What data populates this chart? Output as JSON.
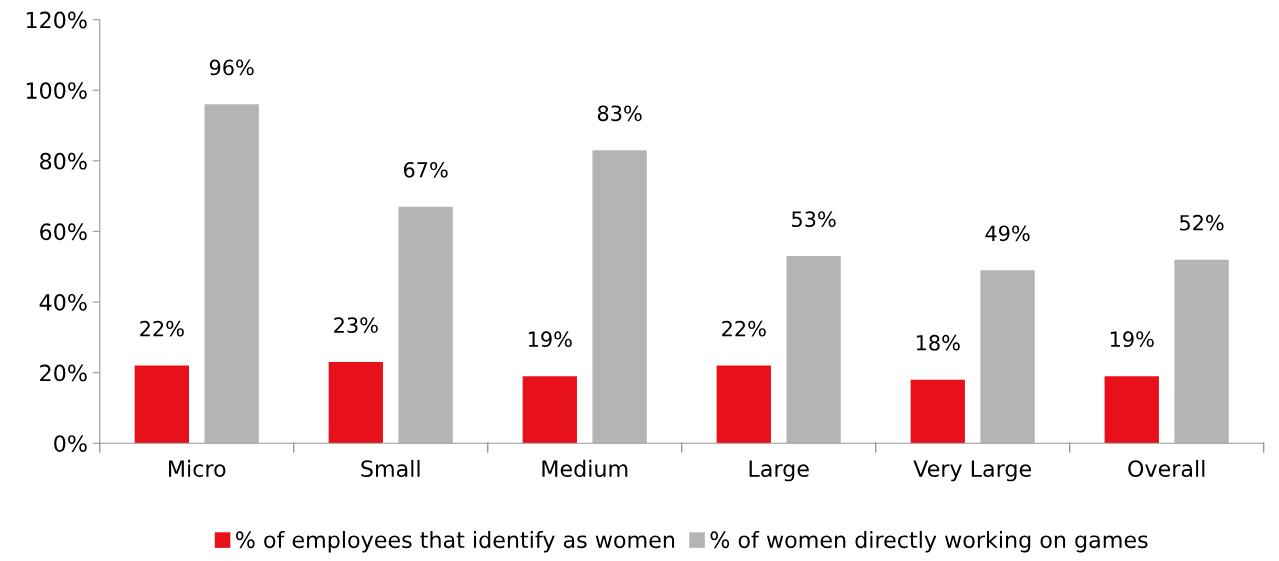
{
  "chart_data": {
    "type": "bar",
    "categories": [
      "Micro",
      "Small",
      "Medium",
      "Large",
      "Very Large",
      "Overall"
    ],
    "series": [
      {
        "name": "% of employees that identify as women",
        "color": "#e8101a",
        "values": [
          22,
          23,
          19,
          22,
          18,
          19
        ],
        "value_labels": [
          "22%",
          "23%",
          "19%",
          "22%",
          "18%",
          "19%"
        ]
      },
      {
        "name": "% of women directly working on games",
        "color": "#b4b4b4",
        "values": [
          96,
          67,
          83,
          53,
          49,
          52
        ],
        "value_labels": [
          "96%",
          "67%",
          "83%",
          "53%",
          "49%",
          "52%"
        ]
      }
    ],
    "ylim": [
      0,
      120
    ],
    "yticks": [
      {
        "value": 0,
        "label": "0%"
      },
      {
        "value": 20,
        "label": "20%"
      },
      {
        "value": 40,
        "label": "40%"
      },
      {
        "value": 60,
        "label": "60%"
      },
      {
        "value": 80,
        "label": "80%"
      },
      {
        "value": 100,
        "label": "100%"
      },
      {
        "value": 120,
        "label": "120%"
      }
    ],
    "grid": false,
    "legend": "bottom"
  }
}
